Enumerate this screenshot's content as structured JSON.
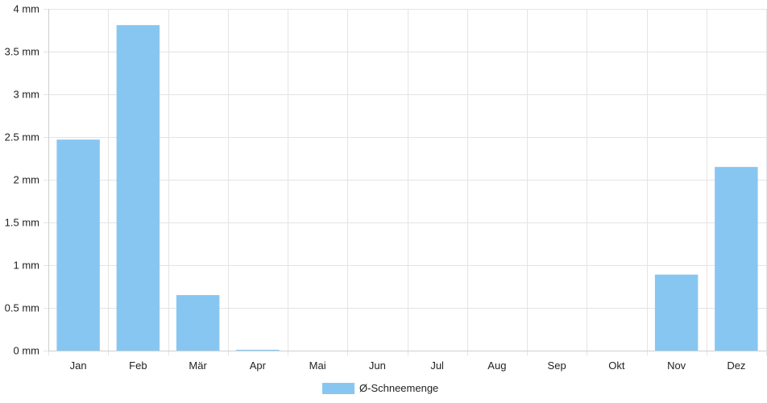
{
  "chart_data": {
    "type": "bar",
    "categories": [
      "Jan",
      "Feb",
      "Mär",
      "Apr",
      "Mai",
      "Jun",
      "Jul",
      "Aug",
      "Sep",
      "Okt",
      "Nov",
      "Dez"
    ],
    "series": [
      {
        "name": "Ø-Schneemenge",
        "values": [
          2.47,
          3.81,
          0.65,
          0.01,
          0,
          0,
          0,
          0,
          0,
          0,
          0.89,
          2.15
        ],
        "color": "#88c6f2"
      }
    ],
    "ylim": [
      0,
      4
    ],
    "yticks": [
      0,
      0.5,
      1,
      1.5,
      2,
      2.5,
      3,
      3.5,
      4
    ],
    "ytick_labels": [
      "0 mm",
      "0.5 mm",
      "1 mm",
      "1.5 mm",
      "2 mm",
      "2.5 mm",
      "3 mm",
      "3.5 mm",
      "4 mm"
    ],
    "grid": true,
    "legend_position": "bottom"
  }
}
